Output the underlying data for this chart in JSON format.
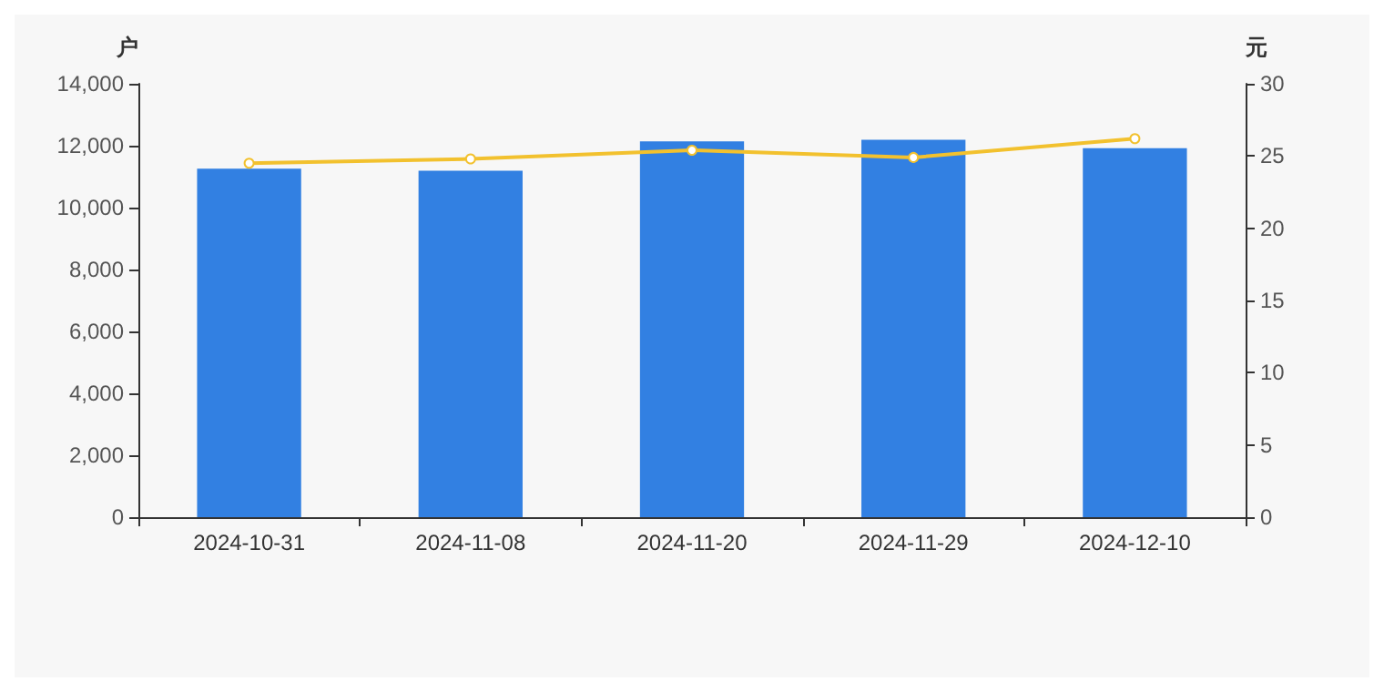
{
  "chart_data": {
    "type": "bar",
    "ylabel": "户",
    "y2label": "元",
    "categories": [
      "2024-10-31",
      "2024-11-08",
      "2024-11-20",
      "2024-11-29",
      "2024-12-10"
    ],
    "series": [
      {
        "color": "#3280e2",
        "values": [
          11260,
          11190,
          12140,
          12190,
          11920
        ]
      },
      {
        "type": "line",
        "axis": "y2",
        "color": "#f2c12e",
        "marker": "circle",
        "values": [
          24.5,
          24.8,
          25.4,
          24.9,
          26.2
        ]
      }
    ],
    "ylim": [
      0,
      14000
    ],
    "yticks": [
      {
        "value": 0,
        "label": "0"
      },
      {
        "value": 2000,
        "label": "2,000"
      },
      {
        "value": 4000,
        "label": "4,000"
      },
      {
        "value": 6000,
        "label": "6,000"
      },
      {
        "value": 8000,
        "label": "8,000"
      },
      {
        "value": 10000,
        "label": "10,000"
      },
      {
        "value": 12000,
        "label": "12,000"
      },
      {
        "value": 14000,
        "label": "14,000"
      }
    ],
    "y2lim": [
      0,
      30
    ],
    "y2ticks": [
      0,
      5,
      10,
      15,
      20,
      25,
      30
    ],
    "grid": false
  }
}
